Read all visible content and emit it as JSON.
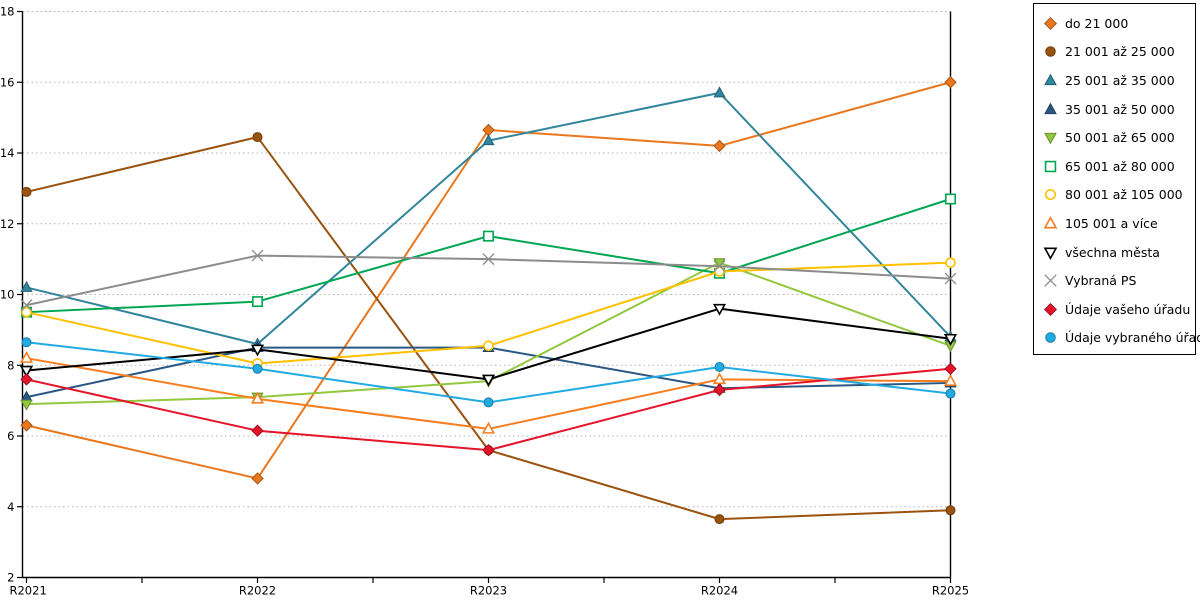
{
  "chart_data": {
    "type": "line",
    "title": "",
    "xlabel": "",
    "ylabel": "",
    "categories": [
      "R2021",
      "R2022",
      "R2023",
      "R2024",
      "R2025"
    ],
    "ylim": [
      2,
      18
    ],
    "ytick_step": 2,
    "grid": "horizontal-dotted",
    "legend_position": "right",
    "series": [
      {
        "name": "do 21 000",
        "color": "#E8771E",
        "marker": "diamond",
        "filled": true,
        "values": [
          6.3,
          4.8,
          14.65,
          14.2,
          16.0
        ]
      },
      {
        "name": "21 001 až 25 000",
        "color": "#9A520F",
        "marker": "circle",
        "filled": true,
        "values": [
          12.9,
          14.45,
          5.6,
          3.65,
          3.9
        ]
      },
      {
        "name": "25 001 až 35 000",
        "color": "#31859C",
        "marker": "triangle-up",
        "filled": true,
        "values": [
          10.2,
          8.6,
          14.35,
          15.7,
          8.8
        ]
      },
      {
        "name": "35 001 až 50 000",
        "color": "#2A5783",
        "marker": "triangle-up",
        "filled": true,
        "values": [
          7.1,
          8.5,
          8.5,
          7.35,
          7.5
        ]
      },
      {
        "name": "50 001 až 65 000",
        "color": "#92C83E",
        "marker": "triangle-down",
        "filled": true,
        "values": [
          6.9,
          7.1,
          7.55,
          10.9,
          8.55
        ]
      },
      {
        "name": "65 001 až 80 000",
        "color": "#00A651",
        "marker": "square",
        "filled": false,
        "values": [
          9.5,
          9.8,
          11.65,
          10.6,
          12.7
        ]
      },
      {
        "name": "80 001 až 105 000",
        "color": "#FFC000",
        "marker": "circle",
        "filled": false,
        "values": [
          9.5,
          8.05,
          8.55,
          10.65,
          10.9
        ]
      },
      {
        "name": "105 001 a více",
        "color": "#F57E20",
        "marker": "triangle-up",
        "filled": false,
        "values": [
          8.2,
          7.05,
          6.2,
          7.6,
          7.55
        ]
      },
      {
        "name": "všechna města",
        "color": "#000000",
        "marker": "triangle-down",
        "filled": false,
        "values": [
          7.85,
          8.45,
          7.6,
          9.6,
          8.75
        ]
      },
      {
        "name": "Vybraná PS",
        "color": "#8C8C8C",
        "marker": "x",
        "filled": false,
        "values": [
          9.7,
          11.1,
          11.0,
          10.8,
          10.45
        ]
      },
      {
        "name": "Údaje vašeho úřadu",
        "color": "#E4142B",
        "marker": "diamond",
        "filled": true,
        "values": [
          7.6,
          6.15,
          5.6,
          7.3,
          7.9
        ]
      },
      {
        "name": "Údaje vybraného úřadu",
        "color": "#21ABE2",
        "marker": "circle",
        "filled": true,
        "values": [
          8.65,
          7.9,
          6.95,
          7.95,
          7.2
        ]
      }
    ]
  }
}
